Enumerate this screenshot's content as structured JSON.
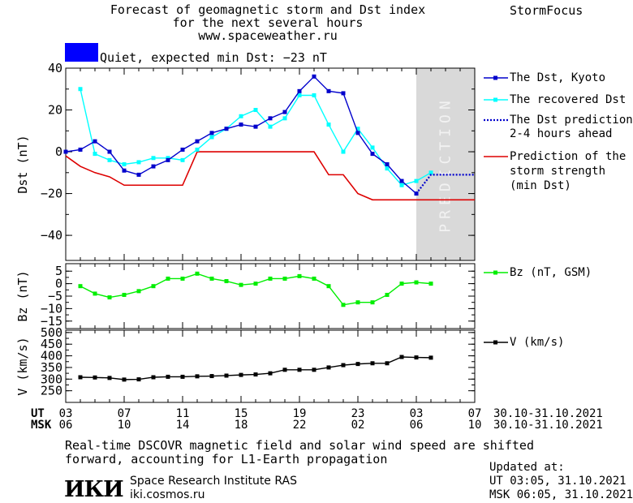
{
  "header": {
    "title_line1": "Forecast of geomagnetic storm and Dst index",
    "title_line2": "for the next several hours",
    "title_line3": "www.spaceweather.ru",
    "brand": "StormFocus"
  },
  "status": {
    "text": "Quiet, expected min Dst: −23 nT",
    "color": "#0000ff"
  },
  "prediction_label": "PREDICTION",
  "legend": {
    "dst_kyoto": "The Dst, Kyoto",
    "dst_recovered": "The recovered Dst",
    "dst_prediction_l1": "The Dst prediction",
    "dst_prediction_l2": "2-4 hours ahead",
    "storm_l1": "Prediction of the",
    "storm_l2": "storm strength",
    "storm_l3": "(min Dst)",
    "bz": "Bz (nT, GSM)",
    "v": "V (km/s)"
  },
  "time_axis": {
    "ut_label": "UT",
    "msk_label": "MSK",
    "range": "30.10-31.10.2021",
    "ut_ticks": [
      "03",
      "07",
      "11",
      "15",
      "19",
      "23",
      "03",
      "07"
    ],
    "msk_ticks": [
      "06",
      "10",
      "14",
      "18",
      "22",
      "02",
      "06",
      "10"
    ]
  },
  "footer": {
    "note_l1": "Real-time DSCOVR magnetic field and solar wind speed are shifted",
    "note_l2": "forward, accounting for L1-Earth propagation",
    "logo": "ИКИ",
    "org": "Space Research Institute RAS",
    "site": "iki.cosmos.ru",
    "updated_label": "Updated at:",
    "updated_ut": "UT   03:05, 31.10.2021",
    "updated_msk": "MSK 06:05, 31.10.2021"
  },
  "chart_data": [
    {
      "type": "line",
      "ylabel": "Dst (nT)",
      "ylim": [
        -52,
        40
      ],
      "yticks": [
        40,
        20,
        0,
        -20,
        -40
      ],
      "x_hours_ut_start": 3,
      "prediction_region_hours": [
        27,
        31
      ],
      "colors": {
        "kyoto": "#0000cc",
        "recovered": "#00ffff",
        "prediction": "#0000cc",
        "storm": "#dd0000",
        "region": "#d9d9d9"
      },
      "series": [
        {
          "name": "The Dst, Kyoto",
          "x": [
            3,
            4,
            5,
            6,
            7,
            8,
            9,
            10,
            11,
            12,
            13,
            14,
            15,
            16,
            17,
            18,
            19,
            20,
            21,
            22,
            23,
            24,
            25,
            26,
            27
          ],
          "values": [
            0,
            1,
            5,
            0,
            -9,
            -11,
            -7,
            -4,
            1,
            5,
            9,
            11,
            13,
            12,
            16,
            19,
            29,
            36,
            29,
            28,
            9,
            -1,
            -6,
            -14,
            -20
          ]
        },
        {
          "name": "The recovered Dst",
          "x": [
            4,
            5,
            6,
            7,
            8,
            9,
            10,
            11,
            12,
            13,
            14,
            15,
            16,
            17,
            18,
            19,
            20,
            21,
            22,
            23,
            24,
            25,
            26,
            27,
            28
          ],
          "values": [
            30,
            -1,
            -4,
            -6,
            -5,
            -3,
            -3,
            -4,
            1,
            7,
            11,
            17,
            20,
            12,
            16,
            27,
            27,
            13,
            0,
            11,
            2,
            -8,
            -16,
            -14,
            -10
          ]
        },
        {
          "name": "The Dst prediction 2-4 hours ahead",
          "x": [
            27,
            28,
            31
          ],
          "values": [
            -20,
            -11,
            -11
          ]
        },
        {
          "name": "Prediction of the storm strength (min Dst)",
          "x": [
            3,
            4,
            5,
            6,
            7,
            8,
            9,
            10,
            11,
            12,
            13,
            14,
            15,
            16,
            17,
            18,
            19,
            20,
            21,
            22,
            23,
            24,
            25,
            26,
            27,
            28,
            29,
            30,
            31
          ],
          "values": [
            -2,
            -7,
            -10,
            -12,
            -16,
            -16,
            -16,
            -16,
            -16,
            0,
            0,
            0,
            0,
            0,
            0,
            0,
            0,
            0,
            -11,
            -11,
            -20,
            -23,
            -23,
            -23,
            -23,
            -23,
            -23,
            -23,
            -23
          ]
        }
      ]
    },
    {
      "type": "line",
      "ylabel": "Bz (nT)",
      "ylim": [
        -18,
        8
      ],
      "yticks": [
        5,
        0,
        -5,
        -10,
        -15
      ],
      "series": [
        {
          "name": "Bz (nT, GSM)",
          "x": [
            4,
            5,
            6,
            7,
            8,
            9,
            10,
            11,
            12,
            13,
            14,
            15,
            16,
            17,
            18,
            19,
            20,
            21,
            22,
            23,
            24,
            25,
            26,
            27,
            28
          ],
          "values": [
            -1,
            -4,
            -5.5,
            -4.5,
            -3,
            -1,
            2,
            2,
            4,
            2,
            1,
            -0.5,
            0,
            2,
            2,
            3,
            2,
            -1,
            -8.5,
            -7.5,
            -7.5,
            -4.5,
            0,
            0.5,
            0
          ]
        }
      ],
      "color": "#00ee00"
    },
    {
      "type": "line",
      "ylabel": "V (km/s)",
      "ylim": [
        200,
        510
      ],
      "yticks": [
        500,
        450,
        400,
        350,
        300,
        250
      ],
      "series": [
        {
          "name": "V (km/s)",
          "x": [
            4,
            5,
            6,
            7,
            8,
            9,
            10,
            11,
            12,
            13,
            14,
            15,
            16,
            17,
            18,
            19,
            20,
            21,
            22,
            23,
            24,
            25,
            26,
            27,
            28
          ],
          "values": [
            308,
            307,
            305,
            298,
            299,
            308,
            310,
            310,
            312,
            313,
            315,
            318,
            320,
            325,
            340,
            340,
            340,
            350,
            360,
            365,
            368,
            368,
            395,
            393,
            392
          ]
        }
      ],
      "color": "#000000"
    }
  ]
}
